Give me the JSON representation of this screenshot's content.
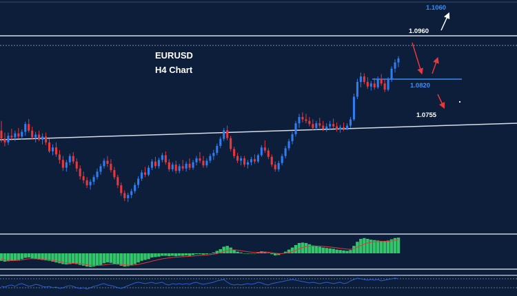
{
  "chart_data": {
    "type": "candlestick",
    "symbol": "EURUSD",
    "timeframe": "H4 Chart",
    "price_range": [
      1.05,
      1.11
    ],
    "colors": {
      "background": "#0c1e3a",
      "bull": "#2f7df0",
      "bear": "#e8383d",
      "level_line": "#d8dde6",
      "target_label": "#3a8ef5",
      "arrow_down": "#e8383d",
      "arrow_up": "#e8383d",
      "arrow_white": "#ffffff",
      "histogram": "#34c46a",
      "signal": "#e8383d",
      "oscillator": "#2f5fd0"
    },
    "levels": [
      {
        "label": "1.1060",
        "price": 1.106,
        "kind": "target"
      },
      {
        "label": "1.0960",
        "price": 1.096,
        "kind": "resistance"
      },
      {
        "label": "1.0820",
        "price": 1.082,
        "kind": "support"
      },
      {
        "label": "1.0755",
        "price": 1.0755,
        "kind": "trendline"
      }
    ],
    "candles": [
      [
        1.0765,
        1.079,
        1.0735,
        1.0745
      ],
      [
        1.0745,
        1.076,
        1.0725,
        1.0735
      ],
      [
        1.0735,
        1.076,
        1.0728,
        1.0752
      ],
      [
        1.0752,
        1.077,
        1.074,
        1.0748
      ],
      [
        1.0748,
        1.0765,
        1.0738,
        1.0758
      ],
      [
        1.0758,
        1.0772,
        1.0745,
        1.075
      ],
      [
        1.075,
        1.0768,
        1.0742,
        1.0762
      ],
      [
        1.0762,
        1.0788,
        1.0752,
        1.0782
      ],
      [
        1.0782,
        1.0795,
        1.076,
        1.0765
      ],
      [
        1.0765,
        1.0775,
        1.0742,
        1.0748
      ],
      [
        1.0748,
        1.0762,
        1.0735,
        1.0755
      ],
      [
        1.0755,
        1.0765,
        1.0738,
        1.0742
      ],
      [
        1.0742,
        1.0758,
        1.073,
        1.075
      ],
      [
        1.075,
        1.076,
        1.0728,
        1.0735
      ],
      [
        1.0735,
        1.0745,
        1.0708,
        1.0712
      ],
      [
        1.0712,
        1.073,
        1.0702,
        1.0722
      ],
      [
        1.0722,
        1.0735,
        1.0698,
        1.0704
      ],
      [
        1.0704,
        1.0715,
        1.068,
        1.069
      ],
      [
        1.069,
        1.07,
        1.0662,
        1.067
      ],
      [
        1.067,
        1.069,
        1.066,
        1.0684
      ],
      [
        1.0684,
        1.0706,
        1.0676,
        1.07
      ],
      [
        1.07,
        1.071,
        1.068,
        1.0686
      ],
      [
        1.0686,
        1.0694,
        1.066,
        1.0668
      ],
      [
        1.0668,
        1.0676,
        1.064,
        1.0648
      ],
      [
        1.0648,
        1.066,
        1.063,
        1.0638
      ],
      [
        1.0638,
        1.0646,
        1.0618,
        1.0625
      ],
      [
        1.0625,
        1.064,
        1.0614,
        1.0634
      ],
      [
        1.0634,
        1.0652,
        1.0626,
        1.0646
      ],
      [
        1.0646,
        1.0668,
        1.064,
        1.066
      ],
      [
        1.066,
        1.068,
        1.0652,
        1.0674
      ],
      [
        1.0674,
        1.0694,
        1.0668,
        1.0688
      ],
      [
        1.0688,
        1.07,
        1.0672,
        1.068
      ],
      [
        1.068,
        1.0692,
        1.0658,
        1.0664
      ],
      [
        1.0664,
        1.0672,
        1.064,
        1.0646
      ],
      [
        1.0646,
        1.0652,
        1.0618,
        1.0625
      ],
      [
        1.0625,
        1.0632,
        1.0598,
        1.0605
      ],
      [
        1.0605,
        1.0612,
        1.0585,
        1.0592
      ],
      [
        1.0592,
        1.0606,
        1.0582,
        1.06
      ],
      [
        1.06,
        1.0616,
        1.0592,
        1.061
      ],
      [
        1.061,
        1.0632,
        1.0604,
        1.0626
      ],
      [
        1.0626,
        1.0648,
        1.0618,
        1.0642
      ],
      [
        1.0642,
        1.0664,
        1.0636,
        1.0658
      ],
      [
        1.0658,
        1.0672,
        1.0646,
        1.0652
      ],
      [
        1.0652,
        1.0676,
        1.0648,
        1.067
      ],
      [
        1.067,
        1.0692,
        1.0664,
        1.0686
      ],
      [
        1.0686,
        1.0698,
        1.0668,
        1.0674
      ],
      [
        1.0674,
        1.0696,
        1.0668,
        1.069
      ],
      [
        1.069,
        1.0708,
        1.0684,
        1.0702
      ],
      [
        1.0702,
        1.0712,
        1.0678,
        1.0684
      ],
      [
        1.0684,
        1.0692,
        1.066,
        1.0666
      ],
      [
        1.0666,
        1.0684,
        1.066,
        1.0678
      ],
      [
        1.0678,
        1.0688,
        1.0655,
        1.0662
      ],
      [
        1.0662,
        1.068,
        1.0656,
        1.0674
      ],
      [
        1.0674,
        1.069,
        1.0662,
        1.0668
      ],
      [
        1.0668,
        1.0686,
        1.066,
        1.068
      ],
      [
        1.068,
        1.0694,
        1.0664,
        1.067
      ],
      [
        1.067,
        1.069,
        1.0665,
        1.0684
      ],
      [
        1.0684,
        1.07,
        1.0676,
        1.0694
      ],
      [
        1.0694,
        1.071,
        1.0682,
        1.0688
      ],
      [
        1.0688,
        1.07,
        1.067,
        1.0676
      ],
      [
        1.0676,
        1.0694,
        1.067,
        1.0688
      ],
      [
        1.0688,
        1.0706,
        1.0682,
        1.07
      ],
      [
        1.07,
        1.0716,
        1.069,
        1.0708
      ],
      [
        1.0708,
        1.0732,
        1.0702,
        1.0726
      ],
      [
        1.0726,
        1.075,
        1.072,
        1.0744
      ],
      [
        1.0744,
        1.0772,
        1.0738,
        1.0766
      ],
      [
        1.0766,
        1.0778,
        1.074,
        1.0746
      ],
      [
        1.0746,
        1.0752,
        1.0712,
        1.0718
      ],
      [
        1.0718,
        1.0724,
        1.0694,
        1.07
      ],
      [
        1.07,
        1.0708,
        1.0682,
        1.0688
      ],
      [
        1.0688,
        1.07,
        1.0676,
        1.0694
      ],
      [
        1.0694,
        1.07,
        1.0672,
        1.0678
      ],
      [
        1.0678,
        1.069,
        1.0668,
        1.0684
      ],
      [
        1.0684,
        1.0698,
        1.0676,
        1.0692
      ],
      [
        1.0692,
        1.0704,
        1.068,
        1.0686
      ],
      [
        1.0686,
        1.0706,
        1.0682,
        1.0702
      ],
      [
        1.0702,
        1.0728,
        1.0698,
        1.0722
      ],
      [
        1.0722,
        1.074,
        1.0708,
        1.0714
      ],
      [
        1.0714,
        1.072,
        1.0692,
        1.0698
      ],
      [
        1.0698,
        1.0704,
        1.0672,
        1.0678
      ],
      [
        1.0678,
        1.0686,
        1.066,
        1.0666
      ],
      [
        1.0666,
        1.0688,
        1.066,
        1.0682
      ],
      [
        1.0682,
        1.0706,
        1.0676,
        1.07
      ],
      [
        1.07,
        1.0726,
        1.0694,
        1.072
      ],
      [
        1.072,
        1.0744,
        1.0714,
        1.0738
      ],
      [
        1.0738,
        1.0762,
        1.073,
        1.0756
      ],
      [
        1.0756,
        1.079,
        1.075,
        1.0784
      ],
      [
        1.0784,
        1.0808,
        1.0772,
        1.08
      ],
      [
        1.08,
        1.0812,
        1.0786,
        1.0794
      ],
      [
        1.0794,
        1.0808,
        1.0784,
        1.079
      ],
      [
        1.079,
        1.08,
        1.0776,
        1.0782
      ],
      [
        1.0782,
        1.0794,
        1.0766,
        1.0772
      ],
      [
        1.0772,
        1.079,
        1.0766,
        1.0784
      ],
      [
        1.0784,
        1.0798,
        1.0772,
        1.0778
      ],
      [
        1.0778,
        1.079,
        1.0764,
        1.077
      ],
      [
        1.077,
        1.0784,
        1.0762,
        1.0776
      ],
      [
        1.0776,
        1.079,
        1.0768,
        1.0782
      ],
      [
        1.0782,
        1.0796,
        1.077,
        1.0776
      ],
      [
        1.0776,
        1.0786,
        1.0762,
        1.0768
      ],
      [
        1.0768,
        1.078,
        1.076,
        1.0774
      ],
      [
        1.0774,
        1.0786,
        1.0764,
        1.077
      ],
      [
        1.077,
        1.0784,
        1.0766,
        1.0778
      ],
      [
        1.0778,
        1.08,
        1.0772,
        1.0794
      ],
      [
        1.0794,
        1.086,
        1.079,
        1.0852
      ],
      [
        1.0852,
        1.0898,
        1.0846,
        1.089
      ],
      [
        1.089,
        1.0914,
        1.0876,
        1.0904
      ],
      [
        1.0904,
        1.0912,
        1.0884,
        1.089
      ],
      [
        1.089,
        1.0902,
        1.0872,
        1.0878
      ],
      [
        1.0878,
        1.0892,
        1.0868,
        1.0886
      ],
      [
        1.0886,
        1.09,
        1.087,
        1.0876
      ],
      [
        1.0876,
        1.0904,
        1.0872,
        1.0898
      ],
      [
        1.0898,
        1.091,
        1.088,
        1.0886
      ],
      [
        1.0886,
        1.0896,
        1.0864,
        1.087
      ],
      [
        1.087,
        1.0902,
        1.0866,
        1.0896
      ],
      [
        1.0896,
        1.093,
        1.089,
        1.0924
      ],
      [
        1.0924,
        1.0948,
        1.0914,
        1.094
      ],
      [
        1.094,
        1.0956,
        1.0928,
        1.095
      ]
    ],
    "macd": {
      "histogram": [
        -0.9,
        -1.0,
        -0.95,
        -0.9,
        -0.85,
        -0.8,
        -0.7,
        -0.55,
        -0.5,
        -0.6,
        -0.7,
        -0.75,
        -0.8,
        -0.85,
        -0.9,
        -1.0,
        -1.1,
        -1.2,
        -1.3,
        -1.35,
        -1.3,
        -1.25,
        -1.3,
        -1.4,
        -1.5,
        -1.6,
        -1.65,
        -1.6,
        -1.5,
        -1.4,
        -1.2,
        -1.1,
        -1.15,
        -1.25,
        -1.35,
        -1.5,
        -1.6,
        -1.55,
        -1.45,
        -1.3,
        -1.1,
        -0.9,
        -0.8,
        -0.7,
        -0.5,
        -0.45,
        -0.4,
        -0.3,
        -0.3,
        -0.35,
        -0.3,
        -0.35,
        -0.3,
        -0.3,
        -0.25,
        -0.3,
        -0.2,
        -0.1,
        -0.1,
        -0.15,
        -0.1,
        0.0,
        0.1,
        0.3,
        0.5,
        0.8,
        0.9,
        0.7,
        0.4,
        0.2,
        0.1,
        0.0,
        -0.05,
        0.0,
        0.0,
        0.1,
        0.25,
        0.2,
        0.05,
        -0.1,
        -0.25,
        -0.2,
        -0.05,
        0.2,
        0.45,
        0.7,
        1.0,
        1.25,
        1.3,
        1.25,
        1.1,
        0.95,
        0.9,
        0.8,
        0.7,
        0.65,
        0.6,
        0.55,
        0.45,
        0.4,
        0.35,
        0.3,
        0.4,
        0.9,
        1.4,
        1.75,
        1.85,
        1.75,
        1.65,
        1.6,
        1.55,
        1.5,
        1.5,
        1.55,
        1.7,
        1.85,
        1.9
      ],
      "signal": [
        -0.7,
        -0.8,
        -0.85,
        -0.88,
        -0.87,
        -0.85,
        -0.8,
        -0.72,
        -0.66,
        -0.65,
        -0.66,
        -0.69,
        -0.72,
        -0.76,
        -0.8,
        -0.86,
        -0.92,
        -1.0,
        -1.08,
        -1.15,
        -1.19,
        -1.21,
        -1.23,
        -1.27,
        -1.31,
        -1.37,
        -1.43,
        -1.47,
        -1.47,
        -1.45,
        -1.4,
        -1.34,
        -1.3,
        -1.29,
        -1.3,
        -1.34,
        -1.39,
        -1.42,
        -1.43,
        -1.4,
        -1.34,
        -1.25,
        -1.16,
        -1.07,
        -0.95,
        -0.85,
        -0.76,
        -0.67,
        -0.6,
        -0.55,
        -0.5,
        -0.47,
        -0.44,
        -0.41,
        -0.38,
        -0.36,
        -0.33,
        -0.28,
        -0.25,
        -0.23,
        -0.2,
        -0.16,
        -0.11,
        -0.03,
        0.08,
        0.22,
        0.35,
        0.42,
        0.42,
        0.38,
        0.32,
        0.25,
        0.19,
        0.15,
        0.12,
        0.12,
        0.14,
        0.15,
        0.13,
        0.08,
        0.01,
        -0.03,
        -0.03,
        0.02,
        0.1,
        0.22,
        0.37,
        0.55,
        0.7,
        0.81,
        0.87,
        0.88,
        0.88,
        0.87,
        0.84,
        0.8,
        0.76,
        0.72,
        0.67,
        0.61,
        0.56,
        0.51,
        0.49,
        0.57,
        0.74,
        0.94,
        1.12,
        1.25,
        1.33,
        1.38,
        1.42,
        1.43,
        1.44,
        1.46,
        1.51,
        1.58,
        1.65
      ]
    },
    "oscillator": [
      0.3,
      0.25,
      0.35,
      0.4,
      0.3,
      0.45,
      0.5,
      0.4,
      0.3,
      0.35,
      0.45,
      0.4,
      0.3,
      0.25,
      0.3,
      0.2,
      0.25,
      0.15,
      0.2,
      0.3,
      0.35,
      0.3,
      0.2,
      0.15,
      0.2,
      0.1,
      0.2,
      0.3,
      0.35,
      0.45,
      0.5,
      0.4,
      0.35,
      0.3,
      0.2,
      0.15,
      0.25,
      0.35,
      0.45,
      0.55,
      0.6,
      0.55,
      0.5,
      0.55,
      0.6,
      0.5,
      0.55,
      0.6,
      0.45,
      0.4,
      0.5,
      0.45,
      0.5,
      0.45,
      0.5,
      0.45,
      0.55,
      0.6,
      0.5,
      0.45,
      0.5,
      0.55,
      0.6,
      0.7,
      0.75,
      0.8,
      0.6,
      0.45,
      0.4,
      0.45,
      0.4,
      0.45,
      0.5,
      0.45,
      0.5,
      0.6,
      0.55,
      0.45,
      0.4,
      0.5,
      0.55,
      0.6,
      0.65,
      0.7,
      0.75,
      0.8,
      0.75,
      0.7,
      0.65,
      0.6,
      0.55,
      0.6,
      0.55,
      0.5,
      0.55,
      0.6,
      0.55,
      0.5,
      0.55,
      0.6,
      0.5,
      0.55,
      0.7,
      0.8,
      0.9,
      0.85,
      0.8,
      0.75,
      0.8,
      0.75,
      0.8,
      0.7,
      0.75,
      0.8,
      0.85,
      0.9,
      0.85
    ]
  }
}
